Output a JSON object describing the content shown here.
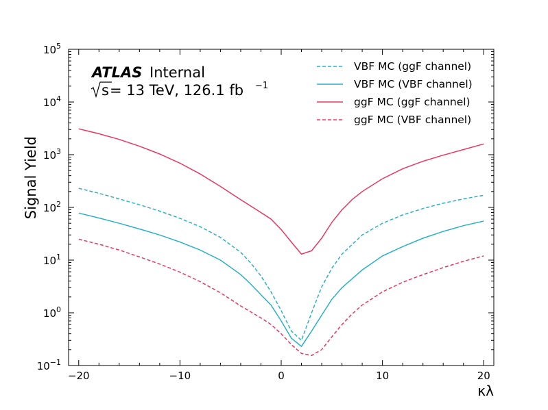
{
  "chart_data": {
    "type": "line",
    "xlabel": "κλ",
    "ylabel": "Signal Yield",
    "xlim": [
      -21,
      21
    ],
    "ylim": [
      0.1,
      100000
    ],
    "yscale": "log",
    "xticks": [
      -20,
      -10,
      0,
      10,
      20
    ],
    "xtick_labels": [
      "−20",
      "−10",
      "0",
      "10",
      "20"
    ],
    "yticks": [
      0.1,
      1,
      10,
      100,
      1000,
      10000,
      100000
    ],
    "ytick_bases": [
      "10",
      "10",
      "10",
      "10",
      "10",
      "10",
      "10"
    ],
    "ytick_exponents": [
      "−1",
      "0",
      "1",
      "2",
      "3",
      "4",
      "5"
    ],
    "grid": false,
    "legend_position": "top-right",
    "experiment": {
      "name": "ATLAS",
      "status": "Internal",
      "energy_prefix": "s",
      "energy_text": " = 13 TeV, 126.1 fb",
      "lumi_exponent": "−1"
    },
    "series": [
      {
        "name": "VBF MC (ggF channel)",
        "color": "#2ab0c8",
        "style": "dashed",
        "x": [
          -20,
          -18,
          -16,
          -14,
          -12,
          -10,
          -8,
          -6,
          -4,
          -3,
          -2,
          -1,
          0,
          1,
          2,
          3,
          4,
          5,
          6,
          8,
          10,
          12,
          14,
          16,
          18,
          20
        ],
        "y": [
          230,
          185,
          145,
          112,
          85,
          62,
          43,
          27,
          14,
          8.8,
          5.0,
          2.5,
          1.1,
          0.45,
          0.3,
          1.0,
          3.1,
          7.0,
          13,
          30,
          50,
          72,
          95,
          120,
          145,
          170
        ]
      },
      {
        "name": "VBF MC (VBF channel)",
        "color": "#2ab0c8",
        "style": "solid",
        "x": [
          -20,
          -18,
          -16,
          -14,
          -12,
          -10,
          -8,
          -6,
          -4,
          -3,
          -2,
          -1,
          0,
          1,
          2,
          3,
          4,
          5,
          6,
          8,
          10,
          12,
          14,
          16,
          18,
          20
        ],
        "y": [
          78,
          63,
          50,
          39,
          30,
          22,
          15.5,
          10,
          5.3,
          3.5,
          2.2,
          1.4,
          0.7,
          0.33,
          0.23,
          0.45,
          0.9,
          1.8,
          3.0,
          6.5,
          12,
          18,
          26,
          35,
          45,
          55
        ]
      },
      {
        "name": "ggF MC (ggF channel)",
        "color": "#e8385f",
        "style": "solid",
        "x": [
          -20,
          -18,
          -16,
          -14,
          -12,
          -10,
          -8,
          -6,
          -4,
          -2,
          -1,
          0,
          1,
          2,
          3,
          4,
          5,
          6,
          7,
          8,
          10,
          12,
          14,
          16,
          18,
          20
        ],
        "y": [
          3100,
          2500,
          1950,
          1450,
          1030,
          690,
          430,
          250,
          140,
          80,
          60,
          38,
          22,
          13,
          15,
          26,
          52,
          90,
          140,
          200,
          350,
          540,
          750,
          980,
          1250,
          1600
        ]
      },
      {
        "name": "ggF MC (VBF channel)",
        "color": "#e8385f",
        "style": "dashed",
        "x": [
          -20,
          -18,
          -16,
          -14,
          -12,
          -10,
          -8,
          -6,
          -4,
          -2,
          -1,
          0,
          1,
          2,
          3,
          4,
          5,
          6,
          7,
          8,
          10,
          12,
          14,
          16,
          18,
          20
        ],
        "y": [
          25,
          20,
          15.5,
          11.5,
          8.4,
          5.9,
          3.9,
          2.4,
          1.35,
          0.8,
          0.6,
          0.4,
          0.25,
          0.17,
          0.155,
          0.2,
          0.35,
          0.6,
          0.95,
          1.4,
          2.5,
          3.8,
          5.3,
          7.2,
          9.5,
          12
        ]
      }
    ]
  }
}
